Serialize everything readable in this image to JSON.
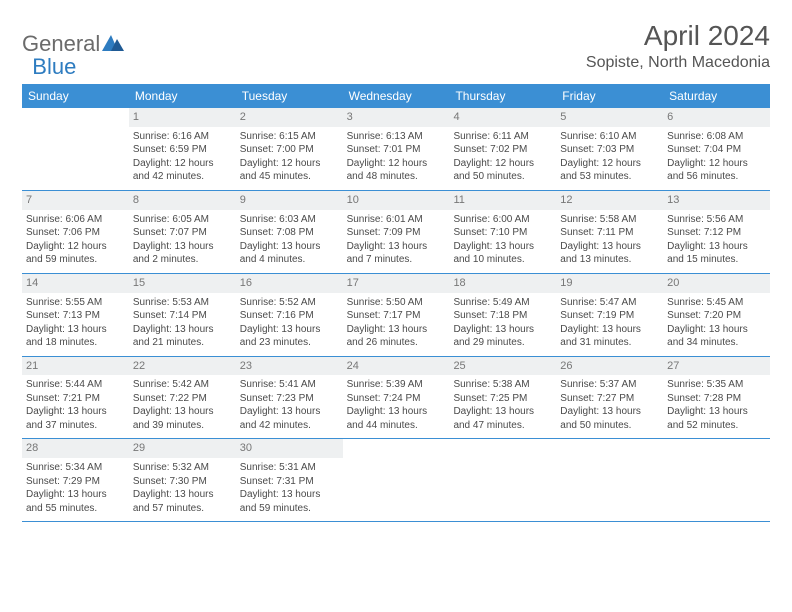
{
  "logo": {
    "part1": "General",
    "part2": "Blue"
  },
  "title": "April 2024",
  "location": "Sopiste, North Macedonia",
  "colors": {
    "header_bg": "#3b8fd4",
    "header_text": "#ffffff",
    "daynum_bg": "#eef0f1",
    "daynum_text": "#777777",
    "body_text": "#4a4a4a",
    "row_border": "#3b8fd4",
    "logo_gray": "#6b6b6b",
    "logo_blue": "#2e7cc0"
  },
  "days_of_week": [
    "Sunday",
    "Monday",
    "Tuesday",
    "Wednesday",
    "Thursday",
    "Friday",
    "Saturday"
  ],
  "layout": {
    "columns": 7,
    "rows": 5,
    "first_day_column_index": 1,
    "cell_font_size": 10,
    "daynum_font_size": 11,
    "dow_font_size": 12
  },
  "weeks": [
    [
      {
        "empty": true
      },
      {
        "n": "1",
        "sunrise": "Sunrise: 6:16 AM",
        "sunset": "Sunset: 6:59 PM",
        "daylight1": "Daylight: 12 hours",
        "daylight2": "and 42 minutes."
      },
      {
        "n": "2",
        "sunrise": "Sunrise: 6:15 AM",
        "sunset": "Sunset: 7:00 PM",
        "daylight1": "Daylight: 12 hours",
        "daylight2": "and 45 minutes."
      },
      {
        "n": "3",
        "sunrise": "Sunrise: 6:13 AM",
        "sunset": "Sunset: 7:01 PM",
        "daylight1": "Daylight: 12 hours",
        "daylight2": "and 48 minutes."
      },
      {
        "n": "4",
        "sunrise": "Sunrise: 6:11 AM",
        "sunset": "Sunset: 7:02 PM",
        "daylight1": "Daylight: 12 hours",
        "daylight2": "and 50 minutes."
      },
      {
        "n": "5",
        "sunrise": "Sunrise: 6:10 AM",
        "sunset": "Sunset: 7:03 PM",
        "daylight1": "Daylight: 12 hours",
        "daylight2": "and 53 minutes."
      },
      {
        "n": "6",
        "sunrise": "Sunrise: 6:08 AM",
        "sunset": "Sunset: 7:04 PM",
        "daylight1": "Daylight: 12 hours",
        "daylight2": "and 56 minutes."
      }
    ],
    [
      {
        "n": "7",
        "sunrise": "Sunrise: 6:06 AM",
        "sunset": "Sunset: 7:06 PM",
        "daylight1": "Daylight: 12 hours",
        "daylight2": "and 59 minutes."
      },
      {
        "n": "8",
        "sunrise": "Sunrise: 6:05 AM",
        "sunset": "Sunset: 7:07 PM",
        "daylight1": "Daylight: 13 hours",
        "daylight2": "and 2 minutes."
      },
      {
        "n": "9",
        "sunrise": "Sunrise: 6:03 AM",
        "sunset": "Sunset: 7:08 PM",
        "daylight1": "Daylight: 13 hours",
        "daylight2": "and 4 minutes."
      },
      {
        "n": "10",
        "sunrise": "Sunrise: 6:01 AM",
        "sunset": "Sunset: 7:09 PM",
        "daylight1": "Daylight: 13 hours",
        "daylight2": "and 7 minutes."
      },
      {
        "n": "11",
        "sunrise": "Sunrise: 6:00 AM",
        "sunset": "Sunset: 7:10 PM",
        "daylight1": "Daylight: 13 hours",
        "daylight2": "and 10 minutes."
      },
      {
        "n": "12",
        "sunrise": "Sunrise: 5:58 AM",
        "sunset": "Sunset: 7:11 PM",
        "daylight1": "Daylight: 13 hours",
        "daylight2": "and 13 minutes."
      },
      {
        "n": "13",
        "sunrise": "Sunrise: 5:56 AM",
        "sunset": "Sunset: 7:12 PM",
        "daylight1": "Daylight: 13 hours",
        "daylight2": "and 15 minutes."
      }
    ],
    [
      {
        "n": "14",
        "sunrise": "Sunrise: 5:55 AM",
        "sunset": "Sunset: 7:13 PM",
        "daylight1": "Daylight: 13 hours",
        "daylight2": "and 18 minutes."
      },
      {
        "n": "15",
        "sunrise": "Sunrise: 5:53 AM",
        "sunset": "Sunset: 7:14 PM",
        "daylight1": "Daylight: 13 hours",
        "daylight2": "and 21 minutes."
      },
      {
        "n": "16",
        "sunrise": "Sunrise: 5:52 AM",
        "sunset": "Sunset: 7:16 PM",
        "daylight1": "Daylight: 13 hours",
        "daylight2": "and 23 minutes."
      },
      {
        "n": "17",
        "sunrise": "Sunrise: 5:50 AM",
        "sunset": "Sunset: 7:17 PM",
        "daylight1": "Daylight: 13 hours",
        "daylight2": "and 26 minutes."
      },
      {
        "n": "18",
        "sunrise": "Sunrise: 5:49 AM",
        "sunset": "Sunset: 7:18 PM",
        "daylight1": "Daylight: 13 hours",
        "daylight2": "and 29 minutes."
      },
      {
        "n": "19",
        "sunrise": "Sunrise: 5:47 AM",
        "sunset": "Sunset: 7:19 PM",
        "daylight1": "Daylight: 13 hours",
        "daylight2": "and 31 minutes."
      },
      {
        "n": "20",
        "sunrise": "Sunrise: 5:45 AM",
        "sunset": "Sunset: 7:20 PM",
        "daylight1": "Daylight: 13 hours",
        "daylight2": "and 34 minutes."
      }
    ],
    [
      {
        "n": "21",
        "sunrise": "Sunrise: 5:44 AM",
        "sunset": "Sunset: 7:21 PM",
        "daylight1": "Daylight: 13 hours",
        "daylight2": "and 37 minutes."
      },
      {
        "n": "22",
        "sunrise": "Sunrise: 5:42 AM",
        "sunset": "Sunset: 7:22 PM",
        "daylight1": "Daylight: 13 hours",
        "daylight2": "and 39 minutes."
      },
      {
        "n": "23",
        "sunrise": "Sunrise: 5:41 AM",
        "sunset": "Sunset: 7:23 PM",
        "daylight1": "Daylight: 13 hours",
        "daylight2": "and 42 minutes."
      },
      {
        "n": "24",
        "sunrise": "Sunrise: 5:39 AM",
        "sunset": "Sunset: 7:24 PM",
        "daylight1": "Daylight: 13 hours",
        "daylight2": "and 44 minutes."
      },
      {
        "n": "25",
        "sunrise": "Sunrise: 5:38 AM",
        "sunset": "Sunset: 7:25 PM",
        "daylight1": "Daylight: 13 hours",
        "daylight2": "and 47 minutes."
      },
      {
        "n": "26",
        "sunrise": "Sunrise: 5:37 AM",
        "sunset": "Sunset: 7:27 PM",
        "daylight1": "Daylight: 13 hours",
        "daylight2": "and 50 minutes."
      },
      {
        "n": "27",
        "sunrise": "Sunrise: 5:35 AM",
        "sunset": "Sunset: 7:28 PM",
        "daylight1": "Daylight: 13 hours",
        "daylight2": "and 52 minutes."
      }
    ],
    [
      {
        "n": "28",
        "sunrise": "Sunrise: 5:34 AM",
        "sunset": "Sunset: 7:29 PM",
        "daylight1": "Daylight: 13 hours",
        "daylight2": "and 55 minutes."
      },
      {
        "n": "29",
        "sunrise": "Sunrise: 5:32 AM",
        "sunset": "Sunset: 7:30 PM",
        "daylight1": "Daylight: 13 hours",
        "daylight2": "and 57 minutes."
      },
      {
        "n": "30",
        "sunrise": "Sunrise: 5:31 AM",
        "sunset": "Sunset: 7:31 PM",
        "daylight1": "Daylight: 13 hours",
        "daylight2": "and 59 minutes."
      },
      {
        "empty": true
      },
      {
        "empty": true
      },
      {
        "empty": true
      },
      {
        "empty": true
      }
    ]
  ]
}
